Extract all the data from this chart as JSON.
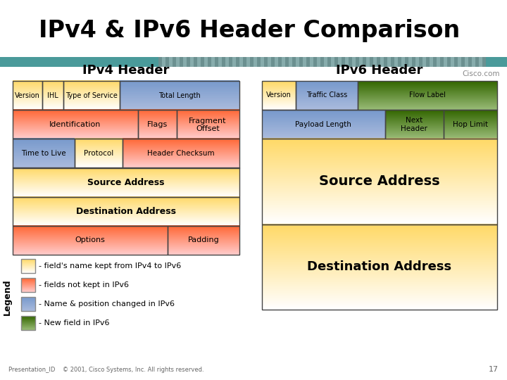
{
  "title": "IPv4 & IPv6 Header Comparison",
  "title_fontsize": 24,
  "bg_color": "#ffffff",
  "teal_color": "#4a9a9a",
  "cisco_text": "Cisco.com",
  "footer_text": "Presentation_ID    © 2001, Cisco Systems, Inc. All rights reserved.",
  "footer_page": "17",
  "ipv4_title": "IPv4 Header",
  "ipv6_title": "IPv6 Header",
  "legend_items": [
    {
      "color_top": "#FFD966",
      "color_bot": "#FFFFFF",
      "text": "- field's name kept from IPv4 to IPv6"
    },
    {
      "color_top": "#FF6633",
      "color_bot": "#FFCCCC",
      "text": "- fields not kept in IPv6"
    },
    {
      "color_top": "#7799CC",
      "color_bot": "#AABBDD",
      "text": "- Name & position changed in IPv6"
    },
    {
      "color_top": "#336600",
      "color_bot": "#99BB77",
      "text": "- New field in IPv6"
    }
  ]
}
